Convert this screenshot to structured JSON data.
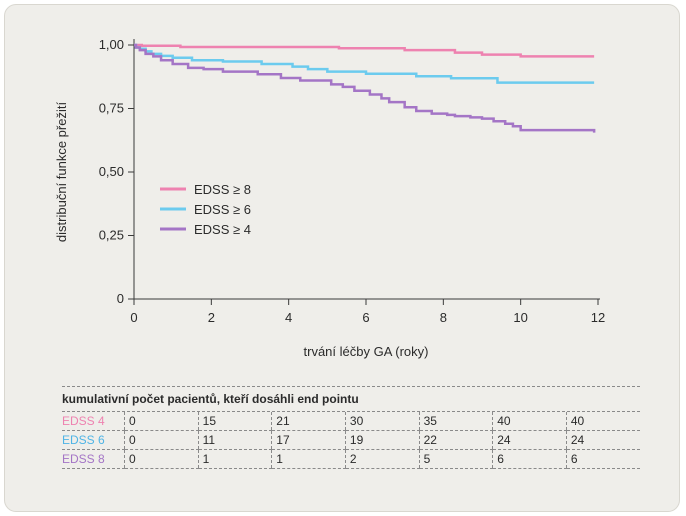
{
  "chart_data": {
    "type": "line",
    "step": true,
    "xlabel": "trvání léčby GA (roky)",
    "ylabel": "distribuční funkce přežití",
    "xlim": [
      0,
      12
    ],
    "ylim": [
      0,
      1
    ],
    "xticks": [
      0,
      2,
      4,
      6,
      8,
      10,
      12
    ],
    "xtick_labels": [
      "0",
      "2",
      "4",
      "6",
      "8",
      "10",
      "12"
    ],
    "yticks": [
      0,
      0.25,
      0.5,
      0.75,
      1.0
    ],
    "ytick_labels": [
      "0",
      "0,25",
      "0,50",
      "0,75",
      "1,00"
    ],
    "legend_position": "center-left",
    "series": [
      {
        "name": "EDSS ≥ 8",
        "color": "#ee82b0",
        "x": [
          0,
          0.2,
          1.2,
          5.3,
          7.0,
          8.3,
          9.0,
          10.0,
          11.9
        ],
        "y": [
          1.0,
          0.997,
          0.992,
          0.987,
          0.98,
          0.97,
          0.962,
          0.955,
          0.955
        ]
      },
      {
        "name": "EDSS ≥ 6",
        "color": "#6ccbee",
        "x": [
          0,
          0.05,
          0.15,
          0.3,
          0.45,
          0.7,
          1.0,
          1.5,
          2.3,
          3.3,
          4.1,
          4.5,
          5.0,
          6.0,
          7.3,
          8.2,
          9.4,
          11.9
        ],
        "y": [
          1.0,
          0.99,
          0.985,
          0.975,
          0.965,
          0.957,
          0.95,
          0.94,
          0.935,
          0.925,
          0.915,
          0.905,
          0.895,
          0.887,
          0.877,
          0.869,
          0.852,
          0.852
        ]
      },
      {
        "name": "EDSS ≥ 4",
        "color": "#a475c6",
        "x": [
          0,
          0.05,
          0.15,
          0.3,
          0.5,
          0.7,
          1.0,
          1.4,
          1.8,
          2.3,
          3.2,
          3.8,
          4.3,
          5.1,
          5.4,
          5.7,
          6.1,
          6.4,
          6.6,
          7.0,
          7.3,
          7.7,
          8.1,
          8.3,
          8.7,
          9.0,
          9.3,
          9.6,
          9.8,
          10.0,
          11.9
        ],
        "y": [
          1.0,
          0.99,
          0.98,
          0.965,
          0.955,
          0.94,
          0.925,
          0.91,
          0.905,
          0.895,
          0.885,
          0.87,
          0.86,
          0.845,
          0.835,
          0.82,
          0.805,
          0.79,
          0.775,
          0.755,
          0.74,
          0.73,
          0.725,
          0.72,
          0.715,
          0.71,
          0.7,
          0.69,
          0.68,
          0.665,
          0.655
        ]
      }
    ]
  },
  "table": {
    "title": "kumulativní počet pacientů, kteří dosáhli end pointu",
    "rows": [
      {
        "label": "EDSS 4",
        "color": "#ee82b0",
        "values": [
          "0",
          "15",
          "21",
          "30",
          "35",
          "40",
          "40"
        ]
      },
      {
        "label": "EDSS 6",
        "color": "#4fb4e6",
        "values": [
          "0",
          "11",
          "17",
          "19",
          "22",
          "24",
          "24"
        ]
      },
      {
        "label": "EDSS 8",
        "color": "#a475c6",
        "values": [
          "0",
          "1",
          "1",
          "2",
          "5",
          "6",
          "6"
        ]
      }
    ]
  }
}
